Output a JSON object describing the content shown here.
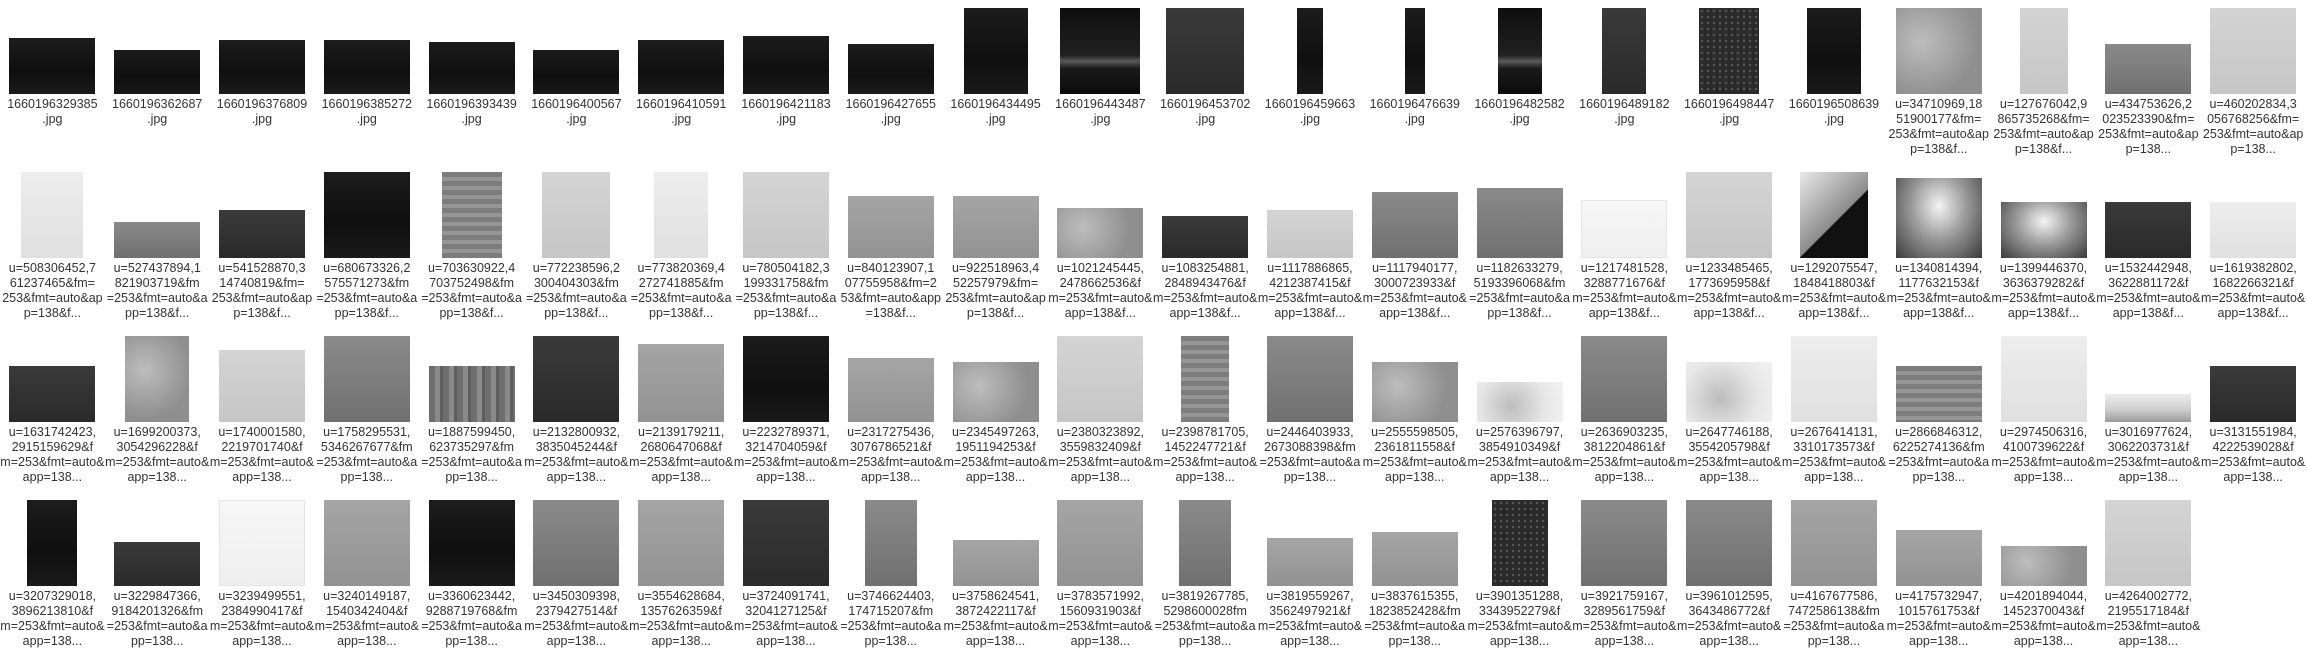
{
  "files": [
    {
      "l1": "1660196329385",
      "l2": ".jpg",
      "l3": "",
      "thumb": {
        "style": "dark",
        "w": 86,
        "h": 56
      }
    },
    {
      "l1": "1660196362687",
      "l2": ".jpg",
      "l3": "",
      "thumb": {
        "style": "dark",
        "w": 86,
        "h": 44
      }
    },
    {
      "l1": "1660196376809",
      "l2": ".jpg",
      "l3": "",
      "thumb": {
        "style": "dark",
        "w": 86,
        "h": 54
      }
    },
    {
      "l1": "1660196385272",
      "l2": ".jpg",
      "l3": "",
      "thumb": {
        "style": "dark",
        "w": 86,
        "h": 54
      }
    },
    {
      "l1": "1660196393439",
      "l2": ".jpg",
      "l3": "",
      "thumb": {
        "style": "dark",
        "w": 86,
        "h": 52
      }
    },
    {
      "l1": "1660196400567",
      "l2": ".jpg",
      "l3": "",
      "thumb": {
        "style": "dark",
        "w": 86,
        "h": 44
      }
    },
    {
      "l1": "1660196410591",
      "l2": ".jpg",
      "l3": "",
      "thumb": {
        "style": "dark",
        "w": 86,
        "h": 54
      }
    },
    {
      "l1": "1660196421183",
      "l2": ".jpg",
      "l3": "",
      "thumb": {
        "style": "dark",
        "w": 86,
        "h": 58
      }
    },
    {
      "l1": "1660196427655",
      "l2": ".jpg",
      "l3": "",
      "thumb": {
        "style": "dark",
        "w": 86,
        "h": 50
      }
    },
    {
      "l1": "1660196434495",
      "l2": ".jpg",
      "l3": "",
      "thumb": {
        "style": "dark",
        "w": 64,
        "h": 86
      }
    },
    {
      "l1": "1660196443487",
      "l2": ".jpg",
      "l3": "",
      "thumb": {
        "style": "horizon",
        "w": 80,
        "h": 86
      }
    },
    {
      "l1": "1660196453702",
      "l2": ".jpg",
      "l3": "",
      "thumb": {
        "style": "darkgrey",
        "w": 78,
        "h": 86
      }
    },
    {
      "l1": "1660196459663",
      "l2": ".jpg",
      "l3": "",
      "thumb": {
        "style": "dark",
        "w": 26,
        "h": 86
      }
    },
    {
      "l1": "1660196476639",
      "l2": ".jpg",
      "l3": "",
      "thumb": {
        "style": "dark",
        "w": 20,
        "h": 86
      }
    },
    {
      "l1": "1660196482582",
      "l2": ".jpg",
      "l3": "",
      "thumb": {
        "style": "horizon",
        "w": 44,
        "h": 86
      }
    },
    {
      "l1": "1660196489182",
      "l2": ".jpg",
      "l3": "",
      "thumb": {
        "style": "darkgrey",
        "w": 44,
        "h": 86
      }
    },
    {
      "l1": "1660196498447",
      "l2": ".jpg",
      "l3": "",
      "thumb": {
        "style": "dots",
        "w": 60,
        "h": 86
      }
    },
    {
      "l1": "1660196508639",
      "l2": ".jpg",
      "l3": "",
      "thumb": {
        "style": "dark",
        "w": 54,
        "h": 86
      }
    },
    {
      "l1": "u=34710969,18",
      "l2": "51900177&fm=",
      "l3": "253&fmt=auto&app=138&f...",
      "thumb": {
        "style": "concrete",
        "w": 86,
        "h": 86
      }
    },
    {
      "l1": "u=127676042,9",
      "l2": "865735268&fm=",
      "l3": "253&fmt=auto&app=138&f...",
      "thumb": {
        "style": "light",
        "w": 48,
        "h": 86
      }
    },
    {
      "l1": "u=434753626,2",
      "l2": "023523390&fm=",
      "l3": "253&fmt=auto&app=138...",
      "thumb": {
        "style": "grey",
        "w": 86,
        "h": 50
      }
    },
    {
      "l1": "u=460202834,3",
      "l2": "056768256&fm=",
      "l3": "253&fmt=auto&app=138...",
      "thumb": {
        "style": "light",
        "w": 86,
        "h": 86
      }
    },
    {
      "l1": "u=508306452,7",
      "l2": "61237465&fm=",
      "l3": "253&fmt=auto&app=138&f...",
      "thumb": {
        "style": "pale",
        "w": 62,
        "h": 86
      }
    },
    {
      "l1": "u=527437894,1",
      "l2": "821903719&fm",
      "l3": "=253&fmt=auto&app=138&f...",
      "thumb": {
        "style": "grey",
        "w": 86,
        "h": 36
      }
    },
    {
      "l1": "u=541528870,3",
      "l2": "14740819&fm=",
      "l3": "253&fmt=auto&app=138&f...",
      "thumb": {
        "style": "darkgrey",
        "w": 86,
        "h": 48
      }
    },
    {
      "l1": "u=680673326,2",
      "l2": "575571273&fm",
      "l3": "=253&fmt=auto&app=138&f...",
      "thumb": {
        "style": "dark",
        "w": 86,
        "h": 86
      }
    },
    {
      "l1": "u=703630922,4",
      "l2": "703752498&fm",
      "l3": "=253&fmt=auto&app=138&f...",
      "thumb": {
        "style": "stripes",
        "w": 60,
        "h": 86
      }
    },
    {
      "l1": "u=772238596,2",
      "l2": "300404303&fm",
      "l3": "=253&fmt=auto&app=138&f...",
      "thumb": {
        "style": "light",
        "w": 68,
        "h": 86
      }
    },
    {
      "l1": "u=773820369,4",
      "l2": "272741885&fm",
      "l3": "=253&fmt=auto&app=138&f...",
      "thumb": {
        "style": "pale",
        "w": 54,
        "h": 86
      }
    },
    {
      "l1": "u=780504182,3",
      "l2": "199331758&fm",
      "l3": "=253&fmt=auto&app=138&f...",
      "thumb": {
        "style": "light",
        "w": 86,
        "h": 86
      }
    },
    {
      "l1": "u=840123907,1",
      "l2": "07755958&fm=2",
      "l3": "53&fmt=auto&app=138&f...",
      "thumb": {
        "style": "midgrey",
        "w": 86,
        "h": 62
      }
    },
    {
      "l1": "u=922518963,4",
      "l2": "52257979&fm=",
      "l3": "253&fmt=auto&app=138&f...",
      "thumb": {
        "style": "midgrey",
        "w": 86,
        "h": 62
      }
    },
    {
      "l1": "u=1021245445,",
      "l2": "2478662536&f",
      "l3": "m=253&fmt=auto&app=138&f...",
      "thumb": {
        "style": "concrete",
        "w": 86,
        "h": 50
      }
    },
    {
      "l1": "u=1083254881,",
      "l2": "2848943476&f",
      "l3": "m=253&fmt=auto&app=138&f...",
      "thumb": {
        "style": "darkgrey",
        "w": 86,
        "h": 42
      }
    },
    {
      "l1": "u=1117886865,",
      "l2": "4212387415&f",
      "l3": "m=253&fmt=auto&app=138&f...",
      "thumb": {
        "style": "light",
        "w": 86,
        "h": 48
      }
    },
    {
      "l1": "u=1117940177,",
      "l2": "3000723933&f",
      "l3": "m=253&fmt=auto&app=138&f...",
      "thumb": {
        "style": "grey",
        "w": 86,
        "h": 66
      }
    },
    {
      "l1": "u=1182633279,",
      "l2": "5193396068&fm",
      "l3": "=253&fmt=auto&app=138&f...",
      "thumb": {
        "style": "grey",
        "w": 86,
        "h": 70
      }
    },
    {
      "l1": "u=1217481528,",
      "l2": "3288771676&f",
      "l3": "m=253&fmt=auto&app=138&f...",
      "thumb": {
        "style": "white",
        "w": 86,
        "h": 58
      }
    },
    {
      "l1": "u=1233485465,",
      "l2": "1773695958&f",
      "l3": "m=253&fmt=auto&app=138&f...",
      "thumb": {
        "style": "light",
        "w": 86,
        "h": 86
      }
    },
    {
      "l1": "u=1292075547,",
      "l2": "1848418803&f",
      "l3": "m=253&fmt=auto&app=138&f...",
      "thumb": {
        "style": "corner",
        "w": 68,
        "h": 86
      }
    },
    {
      "l1": "u=1340814394,",
      "l2": "1177632153&f",
      "l3": "m=253&fmt=auto&app=138&f...",
      "thumb": {
        "style": "spot",
        "w": 86,
        "h": 80
      }
    },
    {
      "l1": "u=1399446370,",
      "l2": "3636379282&f",
      "l3": "m=253&fmt=auto&app=138&f...",
      "thumb": {
        "style": "spot",
        "w": 86,
        "h": 56
      }
    },
    {
      "l1": "u=1532442948,",
      "l2": "3622881172&f",
      "l3": "m=253&fmt=auto&app=138&f...",
      "thumb": {
        "style": "darkgrey",
        "w": 86,
        "h": 56
      }
    },
    {
      "l1": "u=1619382802,",
      "l2": "1682266321&f",
      "l3": "m=253&fmt=auto&app=138&f...",
      "thumb": {
        "style": "pale",
        "w": 86,
        "h": 56
      }
    },
    {
      "l1": "u=1631742423,",
      "l2": "2915159629&f",
      "l3": "m=253&fmt=auto&app=138...",
      "thumb": {
        "style": "darkgrey",
        "w": 86,
        "h": 56
      }
    },
    {
      "l1": "u=1699200373,",
      "l2": "3054296228&f",
      "l3": "m=253&fmt=auto&app=138...",
      "thumb": {
        "style": "concrete",
        "w": 64,
        "h": 86
      }
    },
    {
      "l1": "u=1740001580,",
      "l2": "2219701740&f",
      "l3": "m=253&fmt=auto&app=138...",
      "thumb": {
        "style": "light",
        "w": 86,
        "h": 72
      }
    },
    {
      "l1": "u=1758295531,",
      "l2": "5346267677&fm",
      "l3": "=253&fmt=auto&app=138...",
      "thumb": {
        "style": "grey",
        "w": 86,
        "h": 86
      }
    },
    {
      "l1": "u=1887599450,",
      "l2": "623735297&fm",
      "l3": "=253&fmt=auto&app=138...",
      "thumb": {
        "style": "wood",
        "w": 86,
        "h": 56
      }
    },
    {
      "l1": "u=2132800932,",
      "l2": "3835045244&f",
      "l3": "m=253&fmt=auto&app=138...",
      "thumb": {
        "style": "darkgrey",
        "w": 86,
        "h": 86
      }
    },
    {
      "l1": "u=2139179211,",
      "l2": "2680647068&f",
      "l3": "m=253&fmt=auto&app=138...",
      "thumb": {
        "style": "midgrey",
        "w": 86,
        "h": 78
      }
    },
    {
      "l1": "u=2232789371,",
      "l2": "3214704059&f",
      "l3": "m=253&fmt=auto&app=138...",
      "thumb": {
        "style": "dark",
        "w": 86,
        "h": 86
      }
    },
    {
      "l1": "u=2317275436,",
      "l2": "3076786521&f",
      "l3": "m=253&fmt=auto&app=138...",
      "thumb": {
        "style": "midgrey",
        "w": 86,
        "h": 64
      }
    },
    {
      "l1": "u=2345497263,",
      "l2": "1951194253&f",
      "l3": "m=253&fmt=auto&app=138...",
      "thumb": {
        "style": "concrete",
        "w": 86,
        "h": 60
      }
    },
    {
      "l1": "u=2380323892,",
      "l2": "3559832409&f",
      "l3": "m=253&fmt=auto&app=138...",
      "thumb": {
        "style": "light",
        "w": 86,
        "h": 86
      }
    },
    {
      "l1": "u=2398781705,",
      "l2": "1452247721&f",
      "l3": "m=253&fmt=auto&app=138...",
      "thumb": {
        "style": "stripes",
        "w": 48,
        "h": 86
      }
    },
    {
      "l1": "u=2446403933,",
      "l2": "2673088398&fm",
      "l3": "=253&fmt=auto&app=138...",
      "thumb": {
        "style": "grey",
        "w": 86,
        "h": 86
      }
    },
    {
      "l1": "u=2555598505,",
      "l2": "2361811558&f",
      "l3": "m=253&fmt=auto&app=138...",
      "thumb": {
        "style": "concrete",
        "w": 86,
        "h": 60
      }
    },
    {
      "l1": "u=2576396797,",
      "l2": "3854910349&f",
      "l3": "m=253&fmt=auto&app=138...",
      "thumb": {
        "style": "snow",
        "w": 86,
        "h": 40
      }
    },
    {
      "l1": "u=2636903235,",
      "l2": "3812204861&f",
      "l3": "m=253&fmt=auto&app=138...",
      "thumb": {
        "style": "grey",
        "w": 86,
        "h": 86
      }
    },
    {
      "l1": "u=2647746188,",
      "l2": "3554205798&f",
      "l3": "m=253&fmt=auto&app=138...",
      "thumb": {
        "style": "snow",
        "w": 86,
        "h": 60
      }
    },
    {
      "l1": "u=2676414131,",
      "l2": "3310173573&f",
      "l3": "m=253&fmt=auto&app=138...",
      "thumb": {
        "style": "pale",
        "w": 86,
        "h": 86
      }
    },
    {
      "l1": "u=2866846312,",
      "l2": "6225274136&fm",
      "l3": "=253&fmt=auto&app=138...",
      "thumb": {
        "style": "stripes",
        "w": 86,
        "h": 56
      }
    },
    {
      "l1": "u=2974506316,",
      "l2": "4100739622&f",
      "l3": "m=253&fmt=auto&app=138...",
      "thumb": {
        "style": "pale",
        "w": 86,
        "h": 86
      }
    },
    {
      "l1": "u=3016977624,",
      "l2": "3062203731&f",
      "l3": "m=253&fmt=auto&app=138...",
      "thumb": {
        "style": "strip",
        "w": 86,
        "h": 28
      }
    },
    {
      "l1": "u=3131551984,",
      "l2": "4222539028&f",
      "l3": "m=253&fmt=auto&app=138...",
      "thumb": {
        "style": "darkgrey",
        "w": 86,
        "h": 56
      }
    },
    {
      "l1": "u=3207329018,",
      "l2": "3896213810&f",
      "l3": "m=253&fmt=auto&app=138...",
      "thumb": {
        "style": "dark",
        "w": 50,
        "h": 86
      }
    },
    {
      "l1": "u=3229847366,",
      "l2": "9184201326&fm",
      "l3": "=253&fmt=auto&app=138...",
      "thumb": {
        "style": "darkgrey",
        "w": 86,
        "h": 44
      }
    },
    {
      "l1": "u=3239499551,",
      "l2": "2384990417&f",
      "l3": "m=253&fmt=auto&app=138...",
      "thumb": {
        "style": "white",
        "w": 86,
        "h": 86
      }
    },
    {
      "l1": "u=3240149187,",
      "l2": "1540342404&f",
      "l3": "m=253&fmt=auto&app=138...",
      "thumb": {
        "style": "midgrey",
        "w": 86,
        "h": 86
      }
    },
    {
      "l1": "u=3360623442,",
      "l2": "9288719768&fm",
      "l3": "=253&fmt=auto&app=138...",
      "thumb": {
        "style": "dark",
        "w": 86,
        "h": 86
      }
    },
    {
      "l1": "u=3450309398,",
      "l2": "2379427514&f",
      "l3": "m=253&fmt=auto&app=138...",
      "thumb": {
        "style": "grey",
        "w": 86,
        "h": 86
      }
    },
    {
      "l1": "u=3554628684,",
      "l2": "1357626359&f",
      "l3": "m=253&fmt=auto&app=138...",
      "thumb": {
        "style": "midgrey",
        "w": 86,
        "h": 86
      }
    },
    {
      "l1": "u=3724091741,",
      "l2": "3204127125&f",
      "l3": "m=253&fmt=auto&app=138...",
      "thumb": {
        "style": "darkgrey",
        "w": 86,
        "h": 86
      }
    },
    {
      "l1": "u=3746624403,",
      "l2": "174715207&fm",
      "l3": "=253&fmt=auto&app=138...",
      "thumb": {
        "style": "grey",
        "w": 52,
        "h": 86
      }
    },
    {
      "l1": "u=3758624541,",
      "l2": "3872422117&f",
      "l3": "m=253&fmt=auto&app=138...",
      "thumb": {
        "style": "midgrey",
        "w": 86,
        "h": 46
      }
    },
    {
      "l1": "u=3783571992,",
      "l2": "1560931903&f",
      "l3": "m=253&fmt=auto&app=138...",
      "thumb": {
        "style": "midgrey",
        "w": 86,
        "h": 86
      }
    },
    {
      "l1": "u=3819267785,",
      "l2": "5298600028fm",
      "l3": "=253&fmt=auto&app=138...",
      "thumb": {
        "style": "grey",
        "w": 52,
        "h": 86
      }
    },
    {
      "l1": "u=3819559267,",
      "l2": "3562497921&f",
      "l3": "m=253&fmt=auto&app=138...",
      "thumb": {
        "style": "midgrey",
        "w": 86,
        "h": 48
      }
    },
    {
      "l1": "u=3837615355,",
      "l2": "1823852428&fm",
      "l3": "=253&fmt=auto&app=138...",
      "thumb": {
        "style": "midgrey",
        "w": 86,
        "h": 54
      }
    },
    {
      "l1": "u=3901351288,",
      "l2": "3343952279&f",
      "l3": "m=253&fmt=auto&app=138...",
      "thumb": {
        "style": "dots",
        "w": 56,
        "h": 86
      }
    },
    {
      "l1": "u=3921759167,",
      "l2": "3289561759&f",
      "l3": "m=253&fmt=auto&app=138...",
      "thumb": {
        "style": "grey",
        "w": 86,
        "h": 86
      }
    },
    {
      "l1": "u=3961012595,",
      "l2": "3643486772&f",
      "l3": "m=253&fmt=auto&app=138...",
      "thumb": {
        "style": "grey",
        "w": 86,
        "h": 86
      }
    },
    {
      "l1": "u=4167677586,",
      "l2": "7472586138&fm",
      "l3": "=253&fmt=auto&app=138...",
      "thumb": {
        "style": "midgrey",
        "w": 86,
        "h": 86
      }
    },
    {
      "l1": "u=4175732947,",
      "l2": "1015761753&f",
      "l3": "m=253&fmt=auto&app=138...",
      "thumb": {
        "style": "midgrey",
        "w": 86,
        "h": 56
      }
    },
    {
      "l1": "u=4201894044,",
      "l2": "1452370043&f",
      "l3": "m=253&fmt=auto&app=138...",
      "thumb": {
        "style": "concrete",
        "w": 86,
        "h": 40
      }
    },
    {
      "l1": "u=4264002772,",
      "l2": "2195517184&f",
      "l3": "m=253&fmt=auto&app=138...",
      "thumb": {
        "style": "light",
        "w": 86,
        "h": 86
      }
    }
  ]
}
